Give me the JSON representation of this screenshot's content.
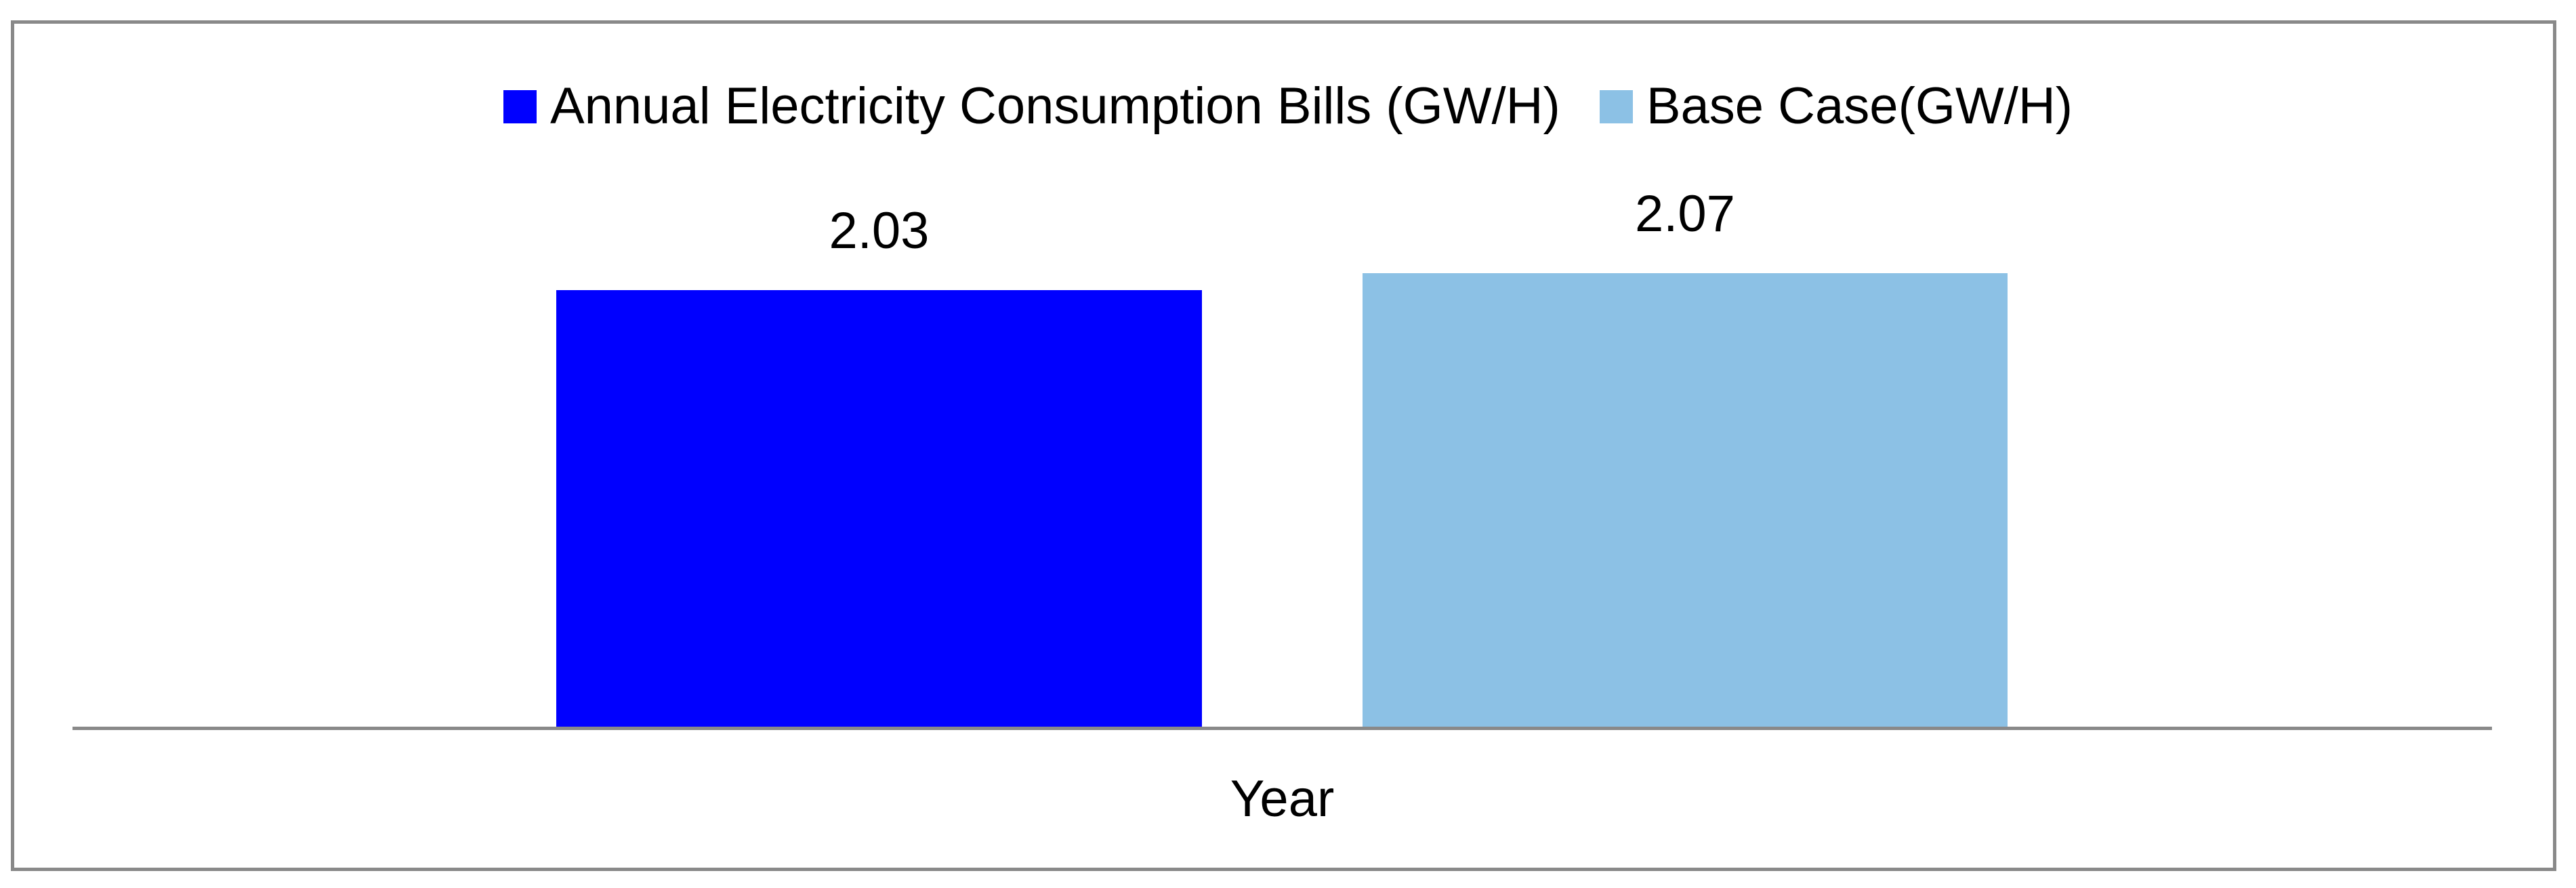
{
  "chart_data": {
    "type": "bar",
    "title": "",
    "categories": [
      ""
    ],
    "series": [
      {
        "name": "Annual Electricity Consumption Bills (GW/H)",
        "values": [
          2.03
        ],
        "data_label": "2.03",
        "color": "#0000FF"
      },
      {
        "name": "Base Case(GW/H)",
        "values": [
          2.07
        ],
        "data_label": "2.07",
        "color": "#8CC1E5"
      }
    ],
    "xlabel": "Year",
    "ylabel": "",
    "ylim": [
      1,
      2.7
    ],
    "grid": false,
    "legend_position": "top",
    "value_axis_visible": false,
    "axis_color": "#898989",
    "frame_color": "#898989",
    "data_label_color": "#000000",
    "text_color": "#000000",
    "background_color": "#FFFFFF"
  }
}
